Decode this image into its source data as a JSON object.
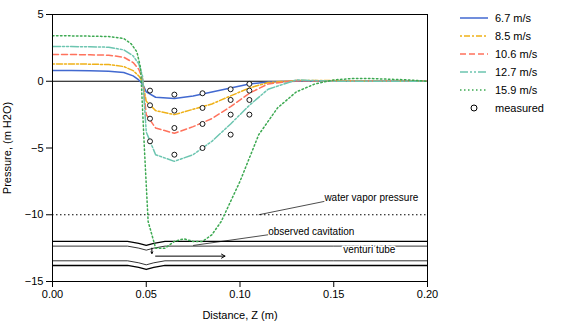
{
  "chart_data": {
    "type": "line",
    "xlabel": "Distance, Z (m)",
    "ylabel": "Pressure, (m H2O)",
    "xlim": [
      0,
      0.2
    ],
    "ylim": [
      -15,
      5
    ],
    "xticks": [
      {
        "value": 0,
        "label": "0.00"
      },
      0.05,
      {
        "value": 0.1,
        "label": "0.10"
      },
      0.15,
      {
        "value": 0.2,
        "label": "0.20"
      }
    ],
    "yticks": [
      -15,
      -10,
      -5,
      0,
      5
    ],
    "grid": false,
    "legend": "right",
    "series": [
      {
        "name": "6.7 m/s",
        "line_style": "solid",
        "x": [
          0,
          0.01,
          0.02,
          0.03,
          0.038,
          0.043,
          0.046,
          0.048,
          0.05,
          0.055,
          0.065,
          0.075,
          0.085,
          0.095,
          0.105,
          0.115,
          0.13,
          0.15,
          0.17,
          0.19,
          0.2
        ],
        "values": [
          0.8,
          0.8,
          0.78,
          0.75,
          0.65,
          0.4,
          0.1,
          -0.2,
          -0.8,
          -1.2,
          -1.3,
          -1.1,
          -0.8,
          -0.5,
          -0.2,
          -0.05,
          0.0,
          0.0,
          0.0,
          0.0,
          0.0
        ]
      },
      {
        "name": "8.5 m/s",
        "line_style": "dashdot",
        "x": [
          0,
          0.01,
          0.02,
          0.03,
          0.038,
          0.043,
          0.046,
          0.048,
          0.05,
          0.055,
          0.065,
          0.075,
          0.085,
          0.095,
          0.105,
          0.115,
          0.13,
          0.15,
          0.17,
          0.19,
          0.2
        ],
        "values": [
          1.3,
          1.3,
          1.28,
          1.25,
          1.1,
          0.8,
          0.4,
          0.0,
          -1.5,
          -2.2,
          -2.5,
          -2.1,
          -1.7,
          -1.1,
          -0.5,
          -0.1,
          0.05,
          0.05,
          0.0,
          0.0,
          0.0
        ]
      },
      {
        "name": "10.6 m/s",
        "line_style": "dashed",
        "x": [
          0,
          0.01,
          0.02,
          0.03,
          0.038,
          0.043,
          0.046,
          0.048,
          0.05,
          0.055,
          0.065,
          0.075,
          0.085,
          0.095,
          0.105,
          0.115,
          0.13,
          0.15,
          0.17,
          0.19,
          0.2
        ],
        "values": [
          2.0,
          2.0,
          1.98,
          1.95,
          1.8,
          1.4,
          0.9,
          0.2,
          -2.5,
          -3.5,
          -3.9,
          -3.4,
          -2.8,
          -1.9,
          -0.9,
          -0.2,
          0.05,
          0.0,
          0.0,
          0.0,
          0.0
        ]
      },
      {
        "name": "12.7 m/s",
        "line_style": "dashdotdot",
        "x": [
          0,
          0.01,
          0.02,
          0.03,
          0.038,
          0.043,
          0.046,
          0.048,
          0.05,
          0.055,
          0.065,
          0.075,
          0.085,
          0.095,
          0.105,
          0.115,
          0.13,
          0.15,
          0.17,
          0.19,
          0.2
        ],
        "values": [
          2.6,
          2.6,
          2.58,
          2.55,
          2.35,
          1.9,
          1.3,
          0.4,
          -3.8,
          -5.5,
          -6.0,
          -5.5,
          -4.5,
          -3.2,
          -1.8,
          -0.6,
          0.1,
          0.0,
          0.0,
          0.0,
          0.0
        ]
      },
      {
        "name": "15.9 m/s",
        "line_style": "dotted",
        "x": [
          0,
          0.01,
          0.02,
          0.03,
          0.038,
          0.042,
          0.045,
          0.047,
          0.049,
          0.051,
          0.055,
          0.06,
          0.065,
          0.07,
          0.075,
          0.08,
          0.085,
          0.09,
          0.1,
          0.11,
          0.12,
          0.13,
          0.14,
          0.15,
          0.16,
          0.17,
          0.18,
          0.19,
          0.2
        ],
        "values": [
          3.4,
          3.4,
          3.38,
          3.35,
          3.2,
          2.8,
          2.2,
          1.0,
          -5.0,
          -10.5,
          -12.5,
          -12.5,
          -12.0,
          -11.8,
          -12.0,
          -12.0,
          -11.5,
          -10.5,
          -7.5,
          -4.0,
          -2.0,
          -0.8,
          -0.2,
          0.1,
          0.2,
          0.2,
          0.15,
          0.1,
          0.0
        ]
      },
      {
        "name": "measured",
        "type": "scatter",
        "marker": "circle",
        "color": "black",
        "x": [
          0.052,
          0.065,
          0.08,
          0.095,
          0.105,
          0.052,
          0.065,
          0.08,
          0.095,
          0.105,
          0.052,
          0.065,
          0.08,
          0.095,
          0.105,
          0.052,
          0.065,
          0.08,
          0.095,
          0.105
        ],
        "values": [
          -0.7,
          -1.0,
          -0.9,
          -0.6,
          -0.2,
          -1.8,
          -2.2,
          -2.0,
          -1.4,
          -0.7,
          -2.8,
          -3.5,
          -3.2,
          -2.5,
          -1.4,
          -4.5,
          -5.5,
          -5.0,
          -4.0,
          -2.5
        ]
      }
    ],
    "reference_lines": [
      {
        "y": -10.0,
        "line_style": "dotted"
      },
      {
        "y": 0,
        "line_style": "solid"
      }
    ],
    "venturi_tube": [
      {
        "x": [
          0,
          0.04,
          0.046,
          0.05,
          0.054,
          0.06,
          0.15,
          0.2
        ],
        "values": [
          -12.0,
          -12.0,
          -12.15,
          -12.3,
          -12.15,
          -12.0,
          -12.0,
          -12.0
        ]
      },
      {
        "x": [
          0,
          0.04,
          0.046,
          0.05,
          0.054,
          0.06,
          0.15,
          0.2
        ],
        "values": [
          -13.8,
          -13.8,
          -13.95,
          -14.1,
          -13.95,
          -13.8,
          -13.8,
          -13.8
        ]
      },
      {
        "x": [
          0,
          0.04,
          0.046,
          0.05,
          0.054,
          0.06,
          0.15,
          0.2
        ],
        "values": [
          -12.35,
          -12.35,
          -12.5,
          -12.65,
          -12.5,
          -12.35,
          -12.35,
          -12.35
        ]
      },
      {
        "x": [
          0,
          0.04,
          0.046,
          0.05,
          0.054,
          0.06,
          0.15,
          0.2
        ],
        "values": [
          -13.45,
          -13.45,
          -13.6,
          -13.75,
          -13.6,
          -13.45,
          -13.45,
          -13.45
        ]
      }
    ],
    "arrows": [
      {
        "x1": 0.055,
        "y1": -13.1,
        "x2": 0.092,
        "y2": -13.1
      },
      {
        "x1": 0.053,
        "y1": -12.5,
        "x2": 0.053,
        "y2": -12.9
      }
    ],
    "annotations": [
      {
        "text": "water vapor pressure",
        "x": 0.11,
        "y": -10.0,
        "text_x": 0.145,
        "text_y": -9.0
      },
      {
        "text": "observed cavitation",
        "x": 0.075,
        "y": -12.3,
        "text_x": 0.115,
        "text_y": -11.5
      },
      {
        "text": "venturi tube",
        "text_x": 0.155,
        "text_y": -12.6
      }
    ]
  }
}
